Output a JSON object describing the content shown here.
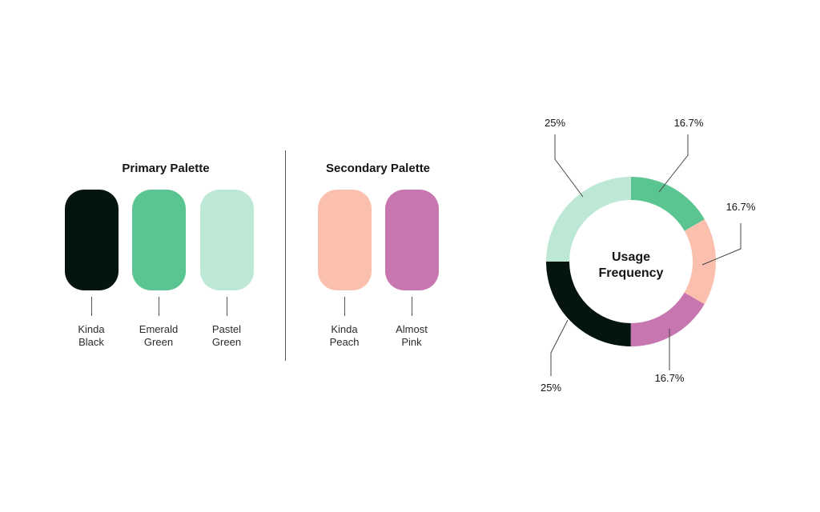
{
  "primary_palette": {
    "title": "Primary Palette",
    "swatches": [
      {
        "line1": "Kinda",
        "line2": "Black",
        "color": "#041410"
      },
      {
        "line1": "Emerald",
        "line2": "Green",
        "color": "#5bc591"
      },
      {
        "line1": "Pastel",
        "line2": "Green",
        "color": "#bde8d6"
      }
    ]
  },
  "secondary_palette": {
    "title": "Secondary Palette",
    "swatches": [
      {
        "line1": "Kinda",
        "line2": "Peach",
        "color": "#fbbfad"
      },
      {
        "line1": "Almost",
        "line2": "Pink",
        "color": "#c876b0"
      }
    ]
  },
  "chart_data": {
    "type": "pie",
    "title": "Usage Frequency",
    "title_lines": [
      "Usage",
      "Frequency"
    ],
    "slices": [
      {
        "name": "Emerald Green",
        "value": 16.7,
        "label": "16.7%",
        "color": "#5bc591"
      },
      {
        "name": "Kinda Peach",
        "value": 16.7,
        "label": "16.7%",
        "color": "#fbbfad"
      },
      {
        "name": "Almost Pink",
        "value": 16.7,
        "label": "16.7%",
        "color": "#c876b0"
      },
      {
        "name": "Kinda Black",
        "value": 25,
        "label": "25%",
        "color": "#041410"
      },
      {
        "name": "Pastel Green",
        "value": 25,
        "label": "25%",
        "color": "#bde8d6"
      }
    ]
  }
}
